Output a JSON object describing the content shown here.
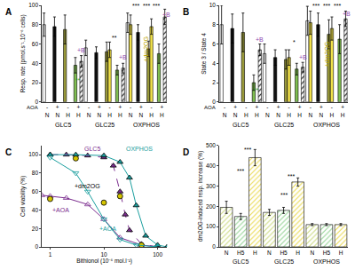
{
  "chart_data": [
    {
      "type": "bar",
      "title": "A",
      "ylabel": "Resp. rate (pmol.s⁻¹.10⁻⁶ cells)",
      "categories": [
        "N",
        "N",
        "H",
        "H",
        "N",
        "N",
        "H",
        "H",
        "N",
        "N",
        "H",
        "H"
      ],
      "row_label": "AOA",
      "row_values": [
        "-",
        "+",
        "-",
        "+",
        "-",
        "+",
        "-",
        "+",
        "-",
        "+",
        "-",
        "+"
      ],
      "groups": [
        "GLC5",
        "GLC25",
        "OXPHOS"
      ],
      "ylim": [
        0,
        100
      ],
      "yticks": [
        0,
        20,
        40,
        60,
        80,
        100
      ],
      "series": [
        {
          "colors": [
            "#ffffff",
            "#111111",
            "#9a9a3a",
            "#7fbf4f",
            "#ffffff",
            "#111111",
            "#9a9a3a",
            "#7fbf4f",
            "#ffffff",
            "#111111",
            "#9a9a3a",
            "#7fbf4f"
          ],
          "values": [
            80,
            78,
            75,
            38,
            56,
            51,
            52,
            33,
            82,
            72,
            55,
            50
          ],
          "errors": [
            12,
            10,
            15,
            8,
            8,
            6,
            10,
            5,
            10,
            8,
            8,
            10
          ]
        },
        {
          "color": "#f2e24a",
          "values": [
            null,
            null,
            null,
            null,
            null,
            null,
            54,
            null,
            80,
            null,
            78,
            null
          ],
          "errors": [
            null,
            null,
            null,
            null,
            null,
            null,
            8,
            null,
            10,
            null,
            8,
            null
          ]
        },
        {
          "color": "#9b59b6",
          "marker": "hatched",
          "values": [
            null,
            null,
            null,
            42,
            null,
            null,
            null,
            35,
            null,
            null,
            null,
            88
          ],
          "errors": [
            null,
            null,
            null,
            6,
            null,
            null,
            null,
            5,
            null,
            null,
            null,
            8
          ]
        }
      ],
      "annotations": [
        {
          "text": "**",
          "x": 3,
          "y": 22,
          "color": "#2e8b2e"
        },
        {
          "text": "+B",
          "x": 3.3,
          "y": 54,
          "color": "#8e44ad"
        },
        {
          "text": "**",
          "x": 6.5,
          "y": 66,
          "color": "#000000"
        },
        {
          "text": "+B",
          "x": 7.3,
          "y": 46,
          "color": "#8e44ad"
        },
        {
          "text": "***",
          "x": 8.5,
          "y": 100,
          "color": "#000000"
        },
        {
          "text": "***",
          "x": 9.5,
          "y": 100,
          "color": "#000000"
        },
        {
          "text": "***",
          "x": 10.5,
          "y": 100,
          "color": "#000000"
        },
        {
          "text": "+dm2OG",
          "x": 9.5,
          "y": 55,
          "color": "#b8a400"
        },
        {
          "text": "+B",
          "x": 11.4,
          "y": 90,
          "color": "#8e44ad"
        }
      ]
    },
    {
      "type": "bar",
      "title": "B",
      "ylabel": "State 3 / State 4",
      "categories": [
        "N",
        "N",
        "H",
        "H",
        "N",
        "N",
        "H",
        "H",
        "N",
        "N",
        "H",
        "H"
      ],
      "row_label": "AOA",
      "row_values": [
        "-",
        "+",
        "-",
        "+",
        "-",
        "+",
        "-",
        "+",
        "-",
        "+",
        "-",
        "+"
      ],
      "groups": [
        "GLC5",
        "GLC25",
        "OXPHOS"
      ],
      "ylim": [
        0,
        10
      ],
      "yticks": [
        0,
        2,
        4,
        6,
        8,
        10
      ],
      "series": [
        {
          "colors": [
            "#ffffff",
            "#111111",
            "#9a9a3a",
            "#7fbf4f",
            "#ffffff",
            "#111111",
            "#9a9a3a",
            "#7fbf4f",
            "#ffffff",
            "#111111",
            "#9a9a3a",
            "#7fbf4f"
          ],
          "values": [
            8.0,
            7.6,
            7.2,
            2.0,
            5.0,
            4.6,
            4.4,
            3.4,
            8.4,
            8.0,
            7.0,
            6.5
          ],
          "errors": [
            2,
            1.5,
            2,
            0.8,
            1,
            0.8,
            1,
            0.6,
            1.5,
            1.2,
            1.5,
            1.5
          ]
        },
        {
          "color": "#f2e24a",
          "values": [
            null,
            null,
            null,
            null,
            null,
            null,
            4.6,
            null,
            8.2,
            null,
            7.6,
            null
          ],
          "errors": [
            null,
            null,
            null,
            null,
            null,
            null,
            0.8,
            null,
            1.2,
            null,
            1.2,
            null
          ]
        },
        {
          "color": "#9b59b6",
          "marker": "hatched",
          "values": [
            null,
            null,
            null,
            5.4,
            null,
            null,
            null,
            3.6,
            null,
            null,
            null,
            8.6
          ],
          "errors": [
            null,
            null,
            null,
            0.6,
            null,
            null,
            null,
            0.5,
            null,
            null,
            null,
            0.8
          ]
        }
      ],
      "annotations": [
        {
          "text": "**",
          "x": 3,
          "y": 1.2,
          "color": "#2e8b2e"
        },
        {
          "text": "+B",
          "x": 3.3,
          "y": 6.5,
          "color": "#8e44ad"
        },
        {
          "text": "*",
          "x": 6.5,
          "y": 6.2,
          "color": "#000000"
        },
        {
          "text": "+B",
          "x": 7.3,
          "y": 4.6,
          "color": "#8e44ad"
        },
        {
          "text": "***",
          "x": 8.5,
          "y": 10,
          "color": "#000000"
        },
        {
          "text": "***",
          "x": 9.5,
          "y": 10,
          "color": "#000000"
        },
        {
          "text": "***",
          "x": 10.5,
          "y": 10,
          "color": "#000000"
        },
        {
          "text": "+dm2OG",
          "x": 9.5,
          "y": 5,
          "color": "#b8a400"
        },
        {
          "text": "+B",
          "x": 11.4,
          "y": 9.1,
          "color": "#8e44ad"
        }
      ]
    },
    {
      "type": "line",
      "title": "C",
      "xlabel": "Bithionol (10⁻⁶ mol.l⁻¹)",
      "ylabel": "Cell viability (%)",
      "log": "x",
      "xlim": [
        0.7,
        150
      ],
      "xticks": [
        1,
        10,
        100
      ],
      "ylim": [
        0,
        110
      ],
      "yticks": [
        0,
        20,
        40,
        60,
        80,
        100
      ],
      "series": [
        {
          "color": "#7b2d8e",
          "marker": "triangle-up",
          "line_style": "dash",
          "x": [
            1,
            2,
            5,
            10,
            15,
            20,
            25,
            30,
            50,
            100
          ],
          "values": [
            100,
            100,
            99,
            97,
            88,
            60,
            35,
            18,
            3,
            0
          ]
        },
        {
          "color": "#7b2d8e",
          "marker": "triangle-up-open",
          "line_style": "solid",
          "x": [
            0.7,
            1,
            2,
            5,
            10,
            20,
            50,
            100
          ],
          "values": [
            56,
            55,
            53,
            46,
            30,
            10,
            2,
            0
          ]
        },
        {
          "color": "#d4c400",
          "marker": "circle",
          "line_style": "none",
          "x": [
            1,
            3,
            10,
            20,
            50
          ],
          "values": [
            52,
            96,
            48,
            55,
            2
          ]
        },
        {
          "color": "#1a9e9e",
          "marker": "triangle-up",
          "line_style": "solid",
          "x": [
            1,
            3,
            10,
            20,
            30,
            40,
            60,
            100,
            150
          ],
          "values": [
            100,
            100,
            99,
            92,
            75,
            45,
            12,
            2,
            0
          ]
        },
        {
          "color": "#1a9e9e",
          "marker": "triangle-down-open",
          "line_style": "solid",
          "x": [
            1,
            3,
            5,
            10,
            20,
            40,
            100
          ],
          "values": [
            97,
            80,
            60,
            30,
            8,
            2,
            0
          ]
        }
      ],
      "annotations": [
        {
          "text": "GLC5",
          "x": 6,
          "y": 106,
          "color": "#7b2d8e"
        },
        {
          "text": "OXPHOS",
          "x": 45,
          "y": 106,
          "color": "#1a9e9e"
        },
        {
          "text": "+AOA",
          "x": 1.6,
          "y": 40,
          "color": "#7b2d8e"
        },
        {
          "text": "+dm2OG",
          "x": 5,
          "y": 66,
          "color": "#000000"
        },
        {
          "text": "+AOA",
          "x": 12,
          "y": 20,
          "color": "#1a9e9e"
        }
      ]
    },
    {
      "type": "bar",
      "title": "D",
      "ylabel": "dm2OG-induced resp. increase (%)",
      "categories": [
        "N",
        "H5",
        "H",
        "N",
        "H5",
        "H",
        "N",
        "H5",
        "H"
      ],
      "groups": [
        "GLC5",
        "GLC25",
        "OXPHOS"
      ],
      "ylim": [
        0,
        500
      ],
      "yticks": [
        0,
        100,
        200,
        300,
        400,
        500
      ],
      "series": [
        {
          "colors": [
            "#c8d87a",
            "#8fd18f",
            "#e8d84a",
            "#c8d87a",
            "#8fd18f",
            "#e8d84a",
            "#c8d87a",
            "#8fd18f",
            "#e8d84a"
          ],
          "marker": "hatched",
          "values": [
            195,
            150,
            440,
            170,
            180,
            320,
            110,
            110,
            110
          ],
          "errors": [
            30,
            15,
            40,
            15,
            15,
            20,
            5,
            5,
            5
          ]
        }
      ],
      "annotations": [
        {
          "text": "***",
          "x": 1.5,
          "y": 480,
          "color": "#000000"
        },
        {
          "text": "***",
          "x": 1,
          "y": 375,
          "color": "#000000"
        },
        {
          "text": "***",
          "x": 4.5,
          "y": 350,
          "color": "#000000"
        },
        {
          "text": "***",
          "x": 4,
          "y": 255,
          "color": "#000000"
        }
      ]
    }
  ]
}
